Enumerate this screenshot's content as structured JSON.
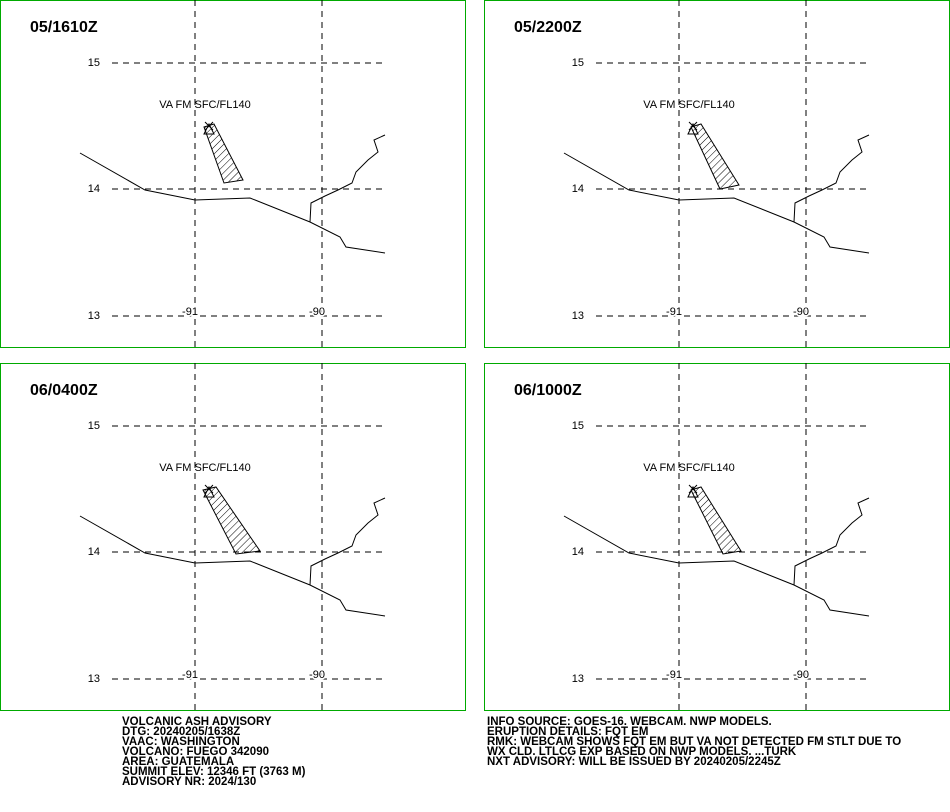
{
  "panels": [
    {
      "time": "05/1610Z",
      "label": "VA FM SFC/FL140",
      "lat_labels": [
        "15",
        "14",
        "13"
      ],
      "lon_labels": [
        "-91",
        "-90"
      ]
    },
    {
      "time": "05/2200Z",
      "label": "VA FM SFC/FL140",
      "lat_labels": [
        "15",
        "14",
        "13"
      ],
      "lon_labels": [
        "-91",
        "-90"
      ]
    },
    {
      "time": "06/0400Z",
      "label": "VA FM SFC/FL140",
      "lat_labels": [
        "15",
        "14",
        "13"
      ],
      "lon_labels": [
        "-91",
        "-90"
      ]
    },
    {
      "time": "06/1000Z",
      "label": "VA FM SFC/FL140",
      "lat_labels": [
        "15",
        "14",
        "13"
      ],
      "lon_labels": [
        "-91",
        "-90"
      ]
    }
  ],
  "advisory_left": [
    "VOLCANIC ASH ADVISORY",
    "DTG: 20240205/1638Z",
    "VAAC: WASHINGTON",
    "VOLCANO: FUEGO 342090",
    "AREA: GUATEMALA",
    "SUMMIT ELEV: 12346 FT (3763 M)",
    "ADVISORY NR: 2024/130"
  ],
  "advisory_right": [
    "INFO SOURCE: GOES-16. WEBCAM. NWP MODELS.",
    "ERUPTION DETAILS: FQT EM",
    "RMK: WEBCAM SHOWS FQT EM BUT VA NOT DETECTED FM STLT DUE TO",
    "WX CLD. LTLCG EXP BASED ON NWP MODELS. ...TURK",
    "NXT ADVISORY: WILL BE ISSUED BY 20240205/2245Z"
  ]
}
